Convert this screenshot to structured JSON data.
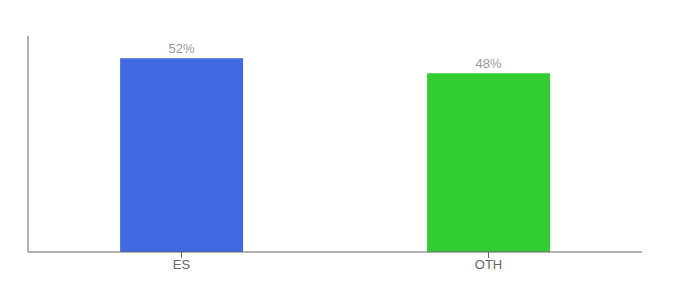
{
  "chart_data": {
    "type": "bar",
    "categories": [
      "ES",
      "OTH"
    ],
    "values": [
      52,
      48
    ],
    "value_labels": [
      "52%",
      "48%"
    ],
    "colors": [
      "#4169e1",
      "#33cc33"
    ],
    "ylim": [
      0,
      58
    ],
    "grid": false,
    "data_labels": true,
    "tick_labels": "x"
  }
}
